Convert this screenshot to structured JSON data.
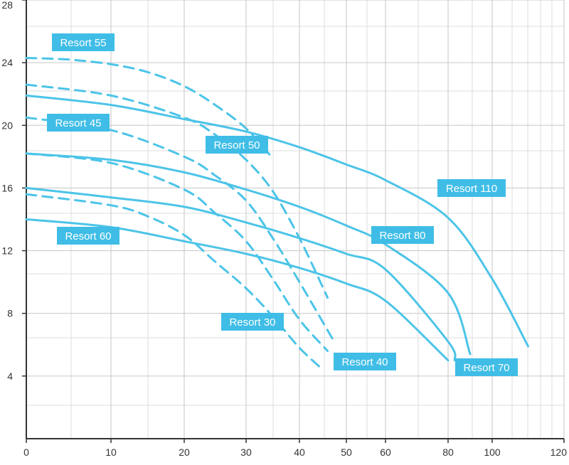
{
  "chart_data": {
    "type": "line",
    "title": "",
    "xlabel": "",
    "ylabel": "",
    "xlim": [
      0,
      120
    ],
    "ylim": [
      0,
      28
    ],
    "x_axis_note": "non-uniform x scale as printed",
    "x_ticks": [
      {
        "value": 0,
        "label": "0"
      },
      {
        "value": 10,
        "label": "10"
      },
      {
        "value": 20,
        "label": "20"
      },
      {
        "value": 30,
        "label": "30"
      },
      {
        "value": 40,
        "label": "40"
      },
      {
        "value": 50,
        "label": "50"
      },
      {
        "value": 60,
        "label": "60"
      },
      {
        "value": 80,
        "label": "80"
      },
      {
        "value": 100,
        "label": "100"
      },
      {
        "value": 120,
        "label": "120"
      }
    ],
    "y_ticks": [
      {
        "value": 4,
        "label": "4"
      },
      {
        "value": 8,
        "label": "8"
      },
      {
        "value": 12,
        "label": "12"
      },
      {
        "value": 16,
        "label": "16"
      },
      {
        "value": 20,
        "label": "20"
      },
      {
        "value": 24,
        "label": "24"
      },
      {
        "value": 28,
        "label": "28"
      }
    ],
    "grid": true,
    "series_color": "#4cc4e8",
    "label_bg": "#3fbde6",
    "series": [
      {
        "name": "Resort 55",
        "style": "dashed",
        "x": [
          0,
          5,
          10,
          15,
          20,
          25,
          30,
          35
        ],
        "y": [
          24.3,
          24.2,
          23.9,
          23.4,
          22.5,
          21.3,
          19.8,
          17.9
        ]
      },
      {
        "name": "Resort 50",
        "style": "dashed",
        "x": [
          0,
          10,
          20,
          25,
          30,
          35,
          40,
          46
        ],
        "y": [
          22.6,
          21.9,
          20.5,
          19.4,
          17.8,
          15.8,
          12.8,
          9.0
        ]
      },
      {
        "name": "Resort 45",
        "style": "dashed",
        "x": [
          0,
          10,
          20,
          25,
          30,
          35,
          40,
          47
        ],
        "y": [
          20.5,
          19.7,
          18.0,
          16.8,
          15.2,
          12.8,
          10.0,
          6.4
        ]
      },
      {
        "name": "Resort 40",
        "style": "dashed",
        "x": [
          0,
          10,
          20,
          25,
          30,
          35,
          40,
          46
        ],
        "y": [
          18.2,
          17.6,
          15.9,
          14.4,
          12.6,
          10.2,
          7.6,
          5.6
        ]
      },
      {
        "name": "Resort 30",
        "style": "dashed",
        "x": [
          0,
          10,
          15,
          20,
          25,
          30,
          35,
          40,
          45
        ],
        "y": [
          15.6,
          14.9,
          14.2,
          13.0,
          11.3,
          9.6,
          7.8,
          5.8,
          4.4
        ]
      },
      {
        "name": "Resort 110",
        "style": "solid",
        "x": [
          0,
          10,
          20,
          30,
          40,
          50,
          60,
          80,
          100,
          110
        ],
        "y": [
          21.9,
          21.3,
          20.4,
          19.6,
          18.6,
          17.5,
          16.5,
          14.1,
          10.2,
          5.9
        ]
      },
      {
        "name": "Resort 80",
        "style": "solid",
        "x": [
          0,
          10,
          20,
          30,
          40,
          50,
          60,
          80,
          90
        ],
        "y": [
          18.2,
          17.8,
          17.0,
          15.9,
          14.8,
          13.6,
          12.4,
          9.3,
          5.4
        ]
      },
      {
        "name": "Resort 70",
        "style": "solid",
        "x": [
          0,
          10,
          20,
          30,
          40,
          50,
          60,
          80,
          83
        ],
        "y": [
          16.0,
          15.4,
          14.8,
          13.8,
          12.8,
          11.8,
          10.8,
          6.2,
          5.0
        ]
      },
      {
        "name": "Resort 60",
        "style": "solid",
        "x": [
          0,
          10,
          20,
          30,
          40,
          50,
          60,
          80
        ],
        "y": [
          14.0,
          13.5,
          12.6,
          11.8,
          10.9,
          9.9,
          8.8,
          5.0
        ]
      }
    ]
  }
}
